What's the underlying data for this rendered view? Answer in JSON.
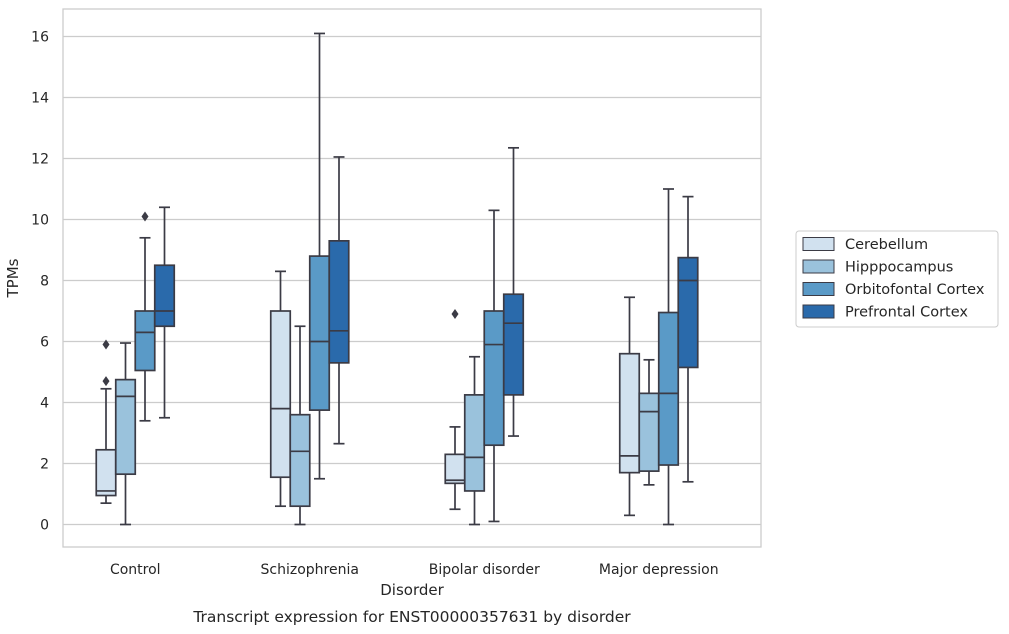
{
  "chart_data": {
    "type": "box",
    "title": "",
    "caption": "Transcript expression for ENST00000357631 by disorder",
    "xlabel": "Disorder",
    "ylabel": "TPMs",
    "ylim": [
      -0.8,
      16.8
    ],
    "yticks": [
      0,
      2,
      4,
      6,
      8,
      10,
      12,
      14,
      16
    ],
    "grid": true,
    "legend_position": "right",
    "categories": [
      "Control",
      "Schizophrenia",
      "Bipolar disorder",
      "Major depression"
    ],
    "series": [
      {
        "name": "Cerebellum",
        "color": "#d1e1ef",
        "boxes": [
          {
            "whisker_low": 0.7,
            "q1": 0.95,
            "median": 1.1,
            "q3": 2.45,
            "whisker_high": 4.45,
            "outliers": [
              4.7,
              5.9
            ]
          },
          {
            "whisker_low": 0.6,
            "q1": 1.55,
            "median": 3.8,
            "q3": 7.0,
            "whisker_high": 8.3,
            "outliers": []
          },
          {
            "whisker_low": 0.5,
            "q1": 1.35,
            "median": 1.45,
            "q3": 2.3,
            "whisker_high": 3.2,
            "outliers": [
              6.9
            ]
          },
          {
            "whisker_low": 0.3,
            "q1": 1.7,
            "median": 2.25,
            "q3": 5.6,
            "whisker_high": 7.45,
            "outliers": []
          }
        ]
      },
      {
        "name": "Hipppocampus",
        "color": "#9ac2dc",
        "boxes": [
          {
            "whisker_low": 0.0,
            "q1": 1.65,
            "median": 4.2,
            "q3": 4.75,
            "whisker_high": 5.95,
            "outliers": []
          },
          {
            "whisker_low": 0.0,
            "q1": 0.6,
            "median": 2.4,
            "q3": 3.6,
            "whisker_high": 6.5,
            "outliers": []
          },
          {
            "whisker_low": 0.0,
            "q1": 1.1,
            "median": 2.2,
            "q3": 4.25,
            "whisker_high": 5.5,
            "outliers": []
          },
          {
            "whisker_low": 1.3,
            "q1": 1.75,
            "median": 3.7,
            "q3": 4.3,
            "whisker_high": 5.4,
            "outliers": []
          }
        ]
      },
      {
        "name": "Orbitofontal Cortex",
        "color": "#5a9ac7",
        "boxes": [
          {
            "whisker_low": 3.4,
            "q1": 5.05,
            "median": 6.3,
            "q3": 7.0,
            "whisker_high": 9.4,
            "outliers": [
              10.1
            ]
          },
          {
            "whisker_low": 1.5,
            "q1": 3.75,
            "median": 6.0,
            "q3": 8.8,
            "whisker_high": 16.1,
            "outliers": []
          },
          {
            "whisker_low": 0.1,
            "q1": 2.6,
            "median": 5.9,
            "q3": 7.0,
            "whisker_high": 10.3,
            "outliers": []
          },
          {
            "whisker_low": 0.0,
            "q1": 1.95,
            "median": 4.3,
            "q3": 6.95,
            "whisker_high": 11.0,
            "outliers": []
          }
        ]
      },
      {
        "name": "Prefrontal Cortex",
        "color": "#2a6aab",
        "boxes": [
          {
            "whisker_low": 3.5,
            "q1": 6.5,
            "median": 7.0,
            "q3": 8.5,
            "whisker_high": 10.4,
            "outliers": []
          },
          {
            "whisker_low": 2.65,
            "q1": 5.3,
            "median": 6.35,
            "q3": 9.3,
            "whisker_high": 12.05,
            "outliers": []
          },
          {
            "whisker_low": 2.9,
            "q1": 4.25,
            "median": 6.6,
            "q3": 7.55,
            "whisker_high": 12.35,
            "outliers": []
          },
          {
            "whisker_low": 1.4,
            "q1": 5.15,
            "median": 8.0,
            "q3": 8.75,
            "whisker_high": 10.75,
            "outliers": []
          }
        ]
      }
    ]
  }
}
